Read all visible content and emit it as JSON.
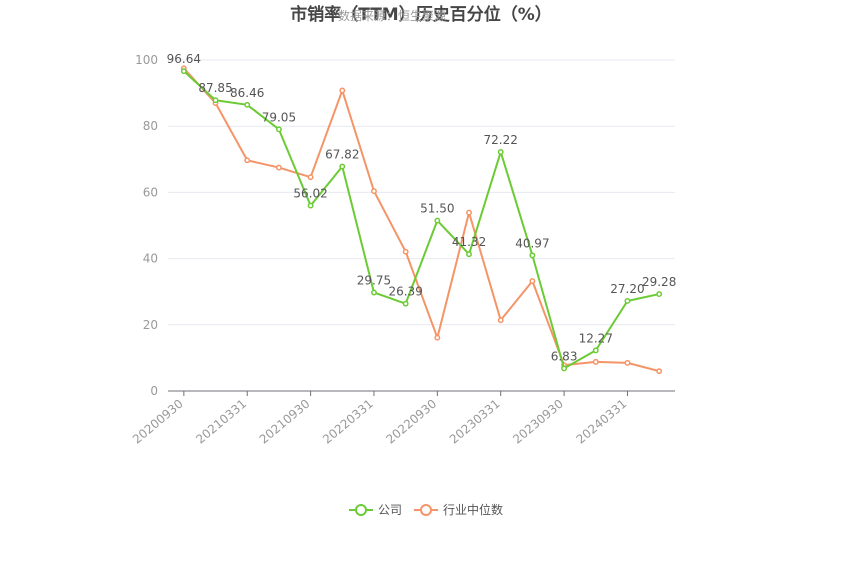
{
  "chart_data": {
    "type": "line",
    "title": "市销率（TTM）历史百分位（%）",
    "watermark": "数据来源：恒生聚源",
    "ylim": [
      0,
      100
    ],
    "yticks": [
      0,
      20,
      40,
      60,
      80,
      100
    ],
    "xtick_labels": [
      "20200930",
      "20210331",
      "20210930",
      "20220331",
      "20220930",
      "20230331",
      "20230930",
      "20240331"
    ],
    "x": [
      "20200930",
      "20201231",
      "20210331",
      "20210630",
      "20210930",
      "20211231",
      "20220331",
      "20220630",
      "20220930",
      "20221231",
      "20230331",
      "20230630",
      "20230930",
      "20231231",
      "20240331",
      "20240630"
    ],
    "series": [
      {
        "name": "公司",
        "color": "#6bcb34",
        "values": [
          96.64,
          87.85,
          86.46,
          79.05,
          56.02,
          67.82,
          29.75,
          26.39,
          51.5,
          41.32,
          72.22,
          40.97,
          6.83,
          12.27,
          27.2,
          29.28
        ],
        "labels": [
          "96.64",
          "87.85",
          "86.46",
          "79.05",
          "56.02",
          "67.82",
          "29.75",
          "26.39",
          "51.50",
          "41.32",
          "72.22",
          "40.97",
          "6.83",
          "12.27",
          "27.20",
          "29.28"
        ]
      },
      {
        "name": "行业中位数",
        "color": "#f59467",
        "values": [
          97.5,
          87.0,
          69.7,
          67.5,
          64.6,
          90.8,
          60.4,
          42.1,
          16.1,
          53.9,
          21.4,
          33.2,
          7.8,
          8.8,
          8.5,
          6.0
        ]
      }
    ],
    "legend_position": "bottom"
  }
}
